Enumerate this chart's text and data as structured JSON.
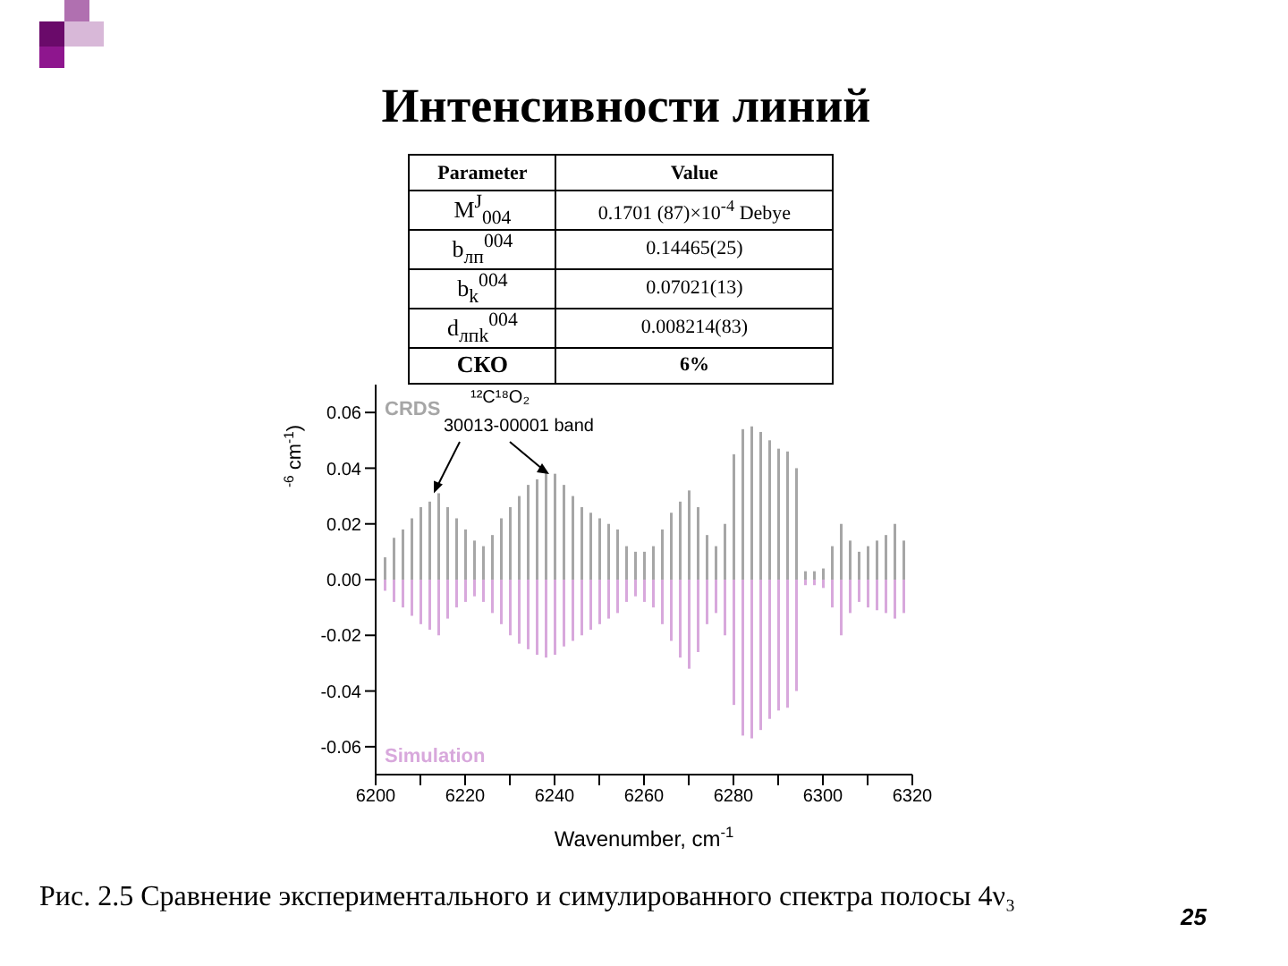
{
  "chart_data": [
    {
      "type": "other",
      "title": "Интенсивности линий",
      "annotations": [
        "Parameter",
        "Value",
        "M$^{J}$$_{004}$",
        "0.1701 (87)×10$^{-4}$ Debye",
        "b$_{лп}$$^{004}$",
        "0.14465(25)",
        "b$_{k}$$^{004}$",
        "0.07021(13)",
        "d$_{лпk}$$^{004}$",
        "0.008214(83)",
        "СКО",
        "6%"
      ]
    },
    {
      "type": "bar",
      "xlabel": "Wavenumber, cm$^{-1}$",
      "ylabel": "$^{-6}$ cm$^{-1}$)",
      "x": [
        6202,
        6204,
        6206,
        6208,
        6210,
        6212,
        6214,
        6216,
        6218,
        6220,
        6222,
        6224,
        6226,
        6228,
        6230,
        6232,
        6234,
        6236,
        6238,
        6240,
        6242,
        6244,
        6246,
        6248,
        6250,
        6252,
        6254,
        6256,
        6258,
        6260,
        6262,
        6264,
        6266,
        6268,
        6270,
        6272,
        6274,
        6276,
        6278,
        6280,
        6282,
        6284,
        6286,
        6288,
        6290,
        6292,
        6294,
        6296,
        6298,
        6300,
        6302,
        6304,
        6306,
        6308,
        6310,
        6312,
        6314,
        6316,
        6318
      ],
      "series": [
        {
          "name": "CRDS",
          "color": "#a6a6a6",
          "values": [
            0.008,
            0.015,
            0.018,
            0.022,
            0.026,
            0.028,
            0.031,
            0.026,
            0.022,
            0.018,
            0.014,
            0.012,
            0.016,
            0.022,
            0.026,
            0.03,
            0.034,
            0.036,
            0.039,
            0.038,
            0.034,
            0.03,
            0.026,
            0.024,
            0.022,
            0.02,
            0.018,
            0.012,
            0.01,
            0.01,
            0.012,
            0.018,
            0.024,
            0.028,
            0.032,
            0.026,
            0.016,
            0.012,
            0.02,
            0.045,
            0.054,
            0.055,
            0.053,
            0.05,
            0.047,
            0.046,
            0.04,
            0.003,
            0.003,
            0.004,
            0.012,
            0.02,
            0.014,
            0.01,
            0.012,
            0.014,
            0.016,
            0.02,
            0.014
          ]
        },
        {
          "name": "Simulation",
          "color": "#d8a8dc",
          "values": [
            -0.004,
            -0.008,
            -0.01,
            -0.013,
            -0.016,
            -0.018,
            -0.02,
            -0.014,
            -0.01,
            -0.008,
            -0.006,
            -0.008,
            -0.012,
            -0.016,
            -0.02,
            -0.023,
            -0.025,
            -0.027,
            -0.028,
            -0.027,
            -0.024,
            -0.022,
            -0.02,
            -0.018,
            -0.016,
            -0.014,
            -0.012,
            -0.008,
            -0.006,
            -0.008,
            -0.01,
            -0.016,
            -0.022,
            -0.028,
            -0.032,
            -0.026,
            -0.016,
            -0.012,
            -0.02,
            -0.045,
            -0.056,
            -0.057,
            -0.054,
            -0.05,
            -0.047,
            -0.046,
            -0.04,
            -0.002,
            -0.002,
            -0.003,
            -0.01,
            -0.02,
            -0.012,
            -0.008,
            -0.01,
            -0.011,
            -0.012,
            -0.014,
            -0.012
          ]
        }
      ],
      "xlim": [
        6200,
        6320
      ],
      "xticks": [
        6200,
        {
          "value": 6210,
          "label": null
        },
        6220,
        {
          "value": 6230,
          "label": null
        },
        6240,
        {
          "value": 6250,
          "label": null
        },
        6260,
        {
          "value": 6270,
          "label": null
        },
        6280,
        {
          "value": 6290,
          "label": null
        },
        6300,
        {
          "value": 6310,
          "label": null
        },
        6320
      ],
      "ylim": [
        -0.07,
        0.07
      ],
      "yticks": [
        -0.06,
        -0.04,
        -0.02,
        {
          "value": 0,
          "label": "0.00"
        },
        0.02,
        0.04,
        0.06
      ],
      "annotations": [
        "¹²C¹⁸O₂",
        {
          "text": "30013-00001 band",
          "x": 6213,
          "y": 0.031
        },
        "Рис. 2.5 Сравнение экспериментального и симулированного спектра  полосы 4ν₃",
        "25"
      ]
    }
  ]
}
